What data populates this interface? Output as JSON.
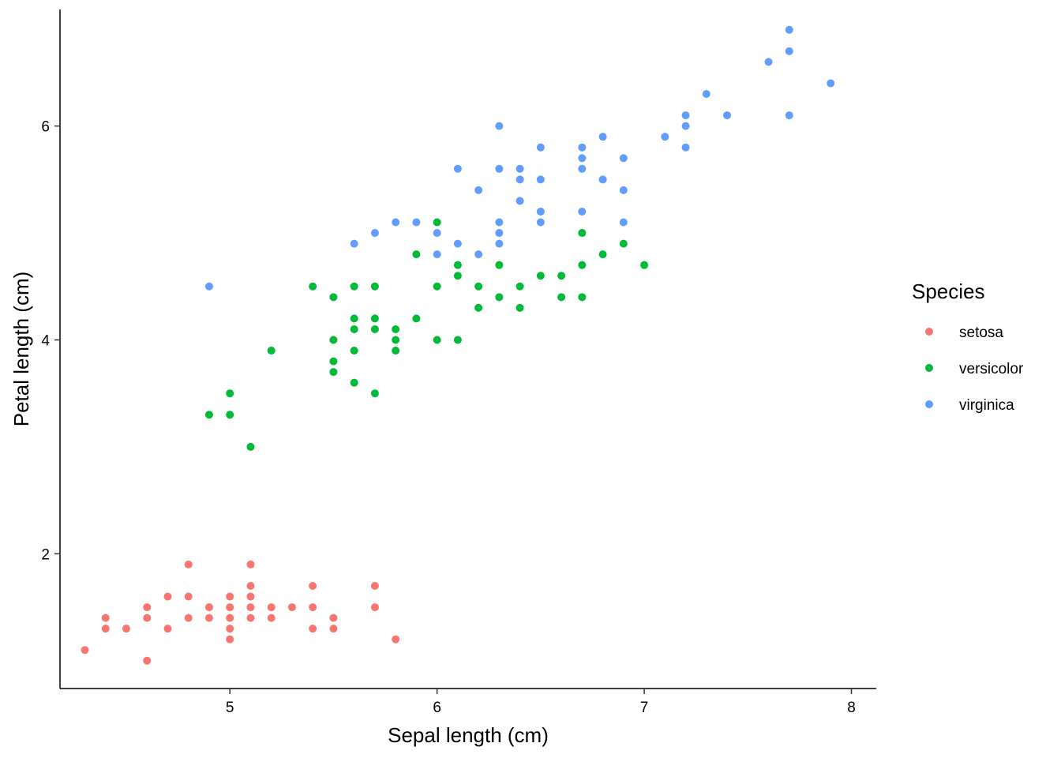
{
  "chart_data": {
    "type": "scatter",
    "title": "",
    "xlabel": "Sepal length (cm)",
    "ylabel": "Petal length (cm)",
    "xlim": [
      4.18,
      8.12
    ],
    "ylim": [
      0.74,
      7.09
    ],
    "xticks": [
      5,
      6,
      7,
      8
    ],
    "yticks": [
      2,
      4,
      6
    ],
    "grid": false,
    "legend": {
      "title": "Species",
      "position": "right"
    },
    "series": [
      {
        "name": "setosa",
        "color": "#F8766D",
        "points": [
          [
            4.3,
            1.1
          ],
          [
            4.4,
            1.4
          ],
          [
            4.4,
            1.3
          ],
          [
            4.5,
            1.3
          ],
          [
            4.6,
            1.5
          ],
          [
            4.6,
            1.4
          ],
          [
            4.6,
            1.0
          ],
          [
            4.7,
            1.6
          ],
          [
            4.7,
            1.3
          ],
          [
            4.8,
            1.9
          ],
          [
            4.8,
            1.6
          ],
          [
            4.8,
            1.4
          ],
          [
            4.9,
            1.5
          ],
          [
            4.9,
            1.4
          ],
          [
            5.0,
            1.6
          ],
          [
            5.0,
            1.5
          ],
          [
            5.0,
            1.4
          ],
          [
            5.0,
            1.3
          ],
          [
            5.0,
            1.2
          ],
          [
            5.1,
            1.9
          ],
          [
            5.1,
            1.7
          ],
          [
            5.1,
            1.6
          ],
          [
            5.1,
            1.5
          ],
          [
            5.1,
            1.4
          ],
          [
            5.2,
            1.5
          ],
          [
            5.2,
            1.4
          ],
          [
            5.3,
            1.5
          ],
          [
            5.4,
            1.7
          ],
          [
            5.4,
            1.5
          ],
          [
            5.4,
            1.3
          ],
          [
            5.5,
            1.4
          ],
          [
            5.5,
            1.3
          ],
          [
            5.7,
            1.7
          ],
          [
            5.7,
            1.5
          ],
          [
            5.8,
            1.2
          ]
        ]
      },
      {
        "name": "versicolor",
        "color": "#00BA38",
        "points": [
          [
            4.9,
            3.3
          ],
          [
            5.0,
            3.5
          ],
          [
            5.0,
            3.3
          ],
          [
            5.1,
            3.0
          ],
          [
            5.2,
            3.9
          ],
          [
            5.4,
            4.5
          ],
          [
            5.5,
            4.4
          ],
          [
            5.5,
            4.0
          ],
          [
            5.5,
            3.8
          ],
          [
            5.5,
            3.7
          ],
          [
            5.6,
            4.5
          ],
          [
            5.6,
            4.2
          ],
          [
            5.6,
            4.1
          ],
          [
            5.6,
            3.9
          ],
          [
            5.6,
            3.6
          ],
          [
            5.7,
            4.5
          ],
          [
            5.7,
            4.2
          ],
          [
            5.7,
            4.1
          ],
          [
            5.7,
            3.5
          ],
          [
            5.8,
            4.1
          ],
          [
            5.8,
            4.0
          ],
          [
            5.8,
            3.9
          ],
          [
            5.9,
            4.8
          ],
          [
            5.9,
            4.2
          ],
          [
            6.0,
            5.1
          ],
          [
            6.0,
            4.5
          ],
          [
            6.0,
            4.0
          ],
          [
            6.1,
            4.7
          ],
          [
            6.1,
            4.6
          ],
          [
            6.1,
            4.0
          ],
          [
            6.2,
            4.5
          ],
          [
            6.2,
            4.3
          ],
          [
            6.3,
            4.7
          ],
          [
            6.3,
            4.4
          ],
          [
            6.4,
            4.5
          ],
          [
            6.4,
            4.3
          ],
          [
            6.5,
            4.6
          ],
          [
            6.6,
            4.6
          ],
          [
            6.6,
            4.4
          ],
          [
            6.7,
            5.0
          ],
          [
            6.7,
            4.7
          ],
          [
            6.7,
            4.4
          ],
          [
            6.8,
            4.8
          ],
          [
            6.9,
            4.9
          ],
          [
            7.0,
            4.7
          ]
        ]
      },
      {
        "name": "virginica",
        "color": "#619CFF",
        "points": [
          [
            4.9,
            4.5
          ],
          [
            5.6,
            4.9
          ],
          [
            5.7,
            5.0
          ],
          [
            5.8,
            5.1
          ],
          [
            5.9,
            5.1
          ],
          [
            6.0,
            5.0
          ],
          [
            6.0,
            4.8
          ],
          [
            6.1,
            5.6
          ],
          [
            6.1,
            4.9
          ],
          [
            6.2,
            5.4
          ],
          [
            6.2,
            4.8
          ],
          [
            6.3,
            6.0
          ],
          [
            6.3,
            5.6
          ],
          [
            6.3,
            5.1
          ],
          [
            6.3,
            5.0
          ],
          [
            6.3,
            4.9
          ],
          [
            6.4,
            5.6
          ],
          [
            6.4,
            5.5
          ],
          [
            6.4,
            5.3
          ],
          [
            6.5,
            5.8
          ],
          [
            6.5,
            5.5
          ],
          [
            6.5,
            5.2
          ],
          [
            6.5,
            5.1
          ],
          [
            6.7,
            5.8
          ],
          [
            6.7,
            5.7
          ],
          [
            6.7,
            5.6
          ],
          [
            6.7,
            5.2
          ],
          [
            6.8,
            5.9
          ],
          [
            6.8,
            5.5
          ],
          [
            6.9,
            5.7
          ],
          [
            6.9,
            5.4
          ],
          [
            6.9,
            5.1
          ],
          [
            7.1,
            5.9
          ],
          [
            7.2,
            6.1
          ],
          [
            7.2,
            6.0
          ],
          [
            7.2,
            5.8
          ],
          [
            7.3,
            6.3
          ],
          [
            7.4,
            6.1
          ],
          [
            7.6,
            6.6
          ],
          [
            7.7,
            6.9
          ],
          [
            7.7,
            6.7
          ],
          [
            7.7,
            6.1
          ],
          [
            7.9,
            6.4
          ]
        ]
      }
    ]
  }
}
